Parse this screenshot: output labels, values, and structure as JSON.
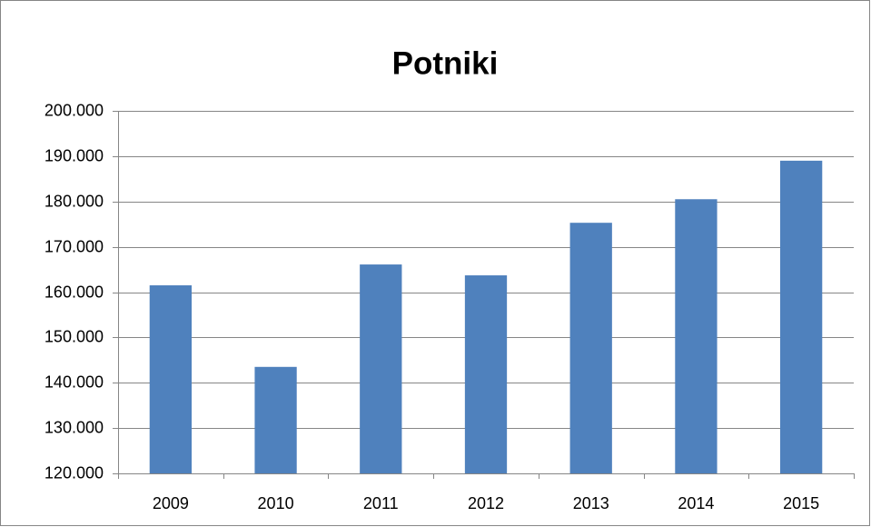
{
  "chart_data": {
    "type": "bar",
    "title": "Potniki",
    "categories": [
      "2009",
      "2010",
      "2011",
      "2012",
      "2013",
      "2014",
      "2015"
    ],
    "values": [
      161500,
      143500,
      166100,
      163700,
      175300,
      180500,
      189000
    ],
    "color": "#4f81bd",
    "ylim": [
      120000,
      200000
    ],
    "yticks": [
      {
        "value": 120000,
        "label": "120.000"
      },
      {
        "value": 130000,
        "label": "130.000"
      },
      {
        "value": 140000,
        "label": "140.000"
      },
      {
        "value": 150000,
        "label": "150.000"
      },
      {
        "value": 160000,
        "label": "160.000"
      },
      {
        "value": 170000,
        "label": "170.000"
      },
      {
        "value": 180000,
        "label": "180.000"
      },
      {
        "value": 190000,
        "label": "190.000"
      },
      {
        "value": 200000,
        "label": "200.000"
      }
    ],
    "grid": true
  }
}
